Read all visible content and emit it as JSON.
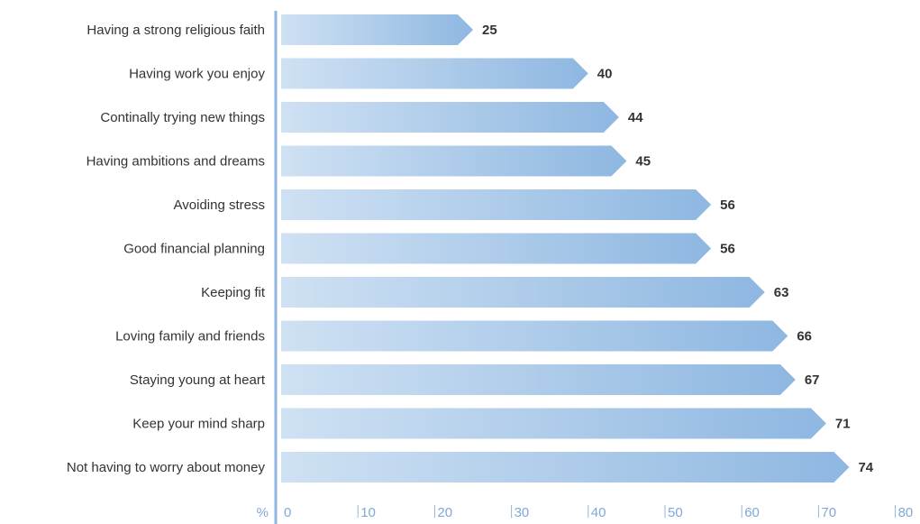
{
  "chart_data": {
    "type": "bar",
    "orientation": "horizontal",
    "categories": [
      "Having a strong religious faith",
      "Having work you enjoy",
      "Continally trying new things",
      "Having ambitions and dreams",
      "Avoiding stress",
      "Good financial planning",
      "Keeping fit",
      "Loving family and friends",
      "Staying young at heart",
      "Keep your mind sharp",
      "Not having to worry about money"
    ],
    "values": [
      25,
      40,
      44,
      45,
      56,
      56,
      63,
      66,
      67,
      71,
      74
    ],
    "value_labels": [
      "25",
      "40",
      "44",
      "45",
      "56",
      "56",
      "63",
      "66",
      "67",
      "71",
      "74"
    ],
    "xlim": [
      0,
      80
    ],
    "xticks": [
      0,
      10,
      20,
      30,
      40,
      50,
      60,
      70,
      80
    ],
    "tick_labels": [
      "0",
      "10",
      "20",
      "30",
      "40",
      "50",
      "60",
      "70",
      "80"
    ],
    "unit_label": "%",
    "grid": false,
    "colors": {
      "bar_light": "#cfe1f3",
      "bar_dark": "#8eb7e1",
      "axis": "#8fb6e0",
      "tick_text": "#7fa8d6",
      "text": "#333333"
    }
  }
}
